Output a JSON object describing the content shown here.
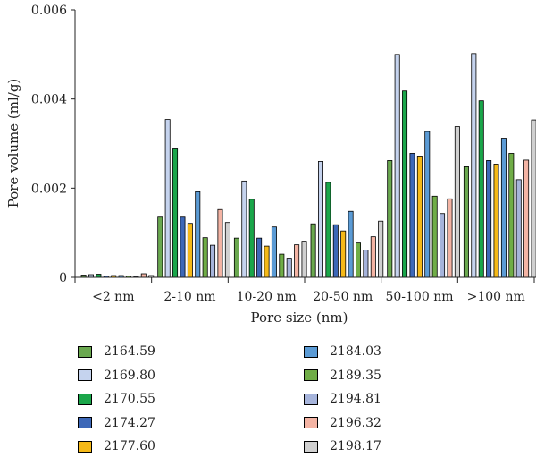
{
  "chart_data": {
    "type": "bar",
    "title": "",
    "xlabel": "Pore size (nm)",
    "ylabel": "Pore volume (ml/g)",
    "ylim": [
      0,
      0.006
    ],
    "yticks": [
      "0",
      "0.002",
      "0.004",
      "0.006"
    ],
    "grid": false,
    "legend_position": "bottom",
    "categories": [
      "<2 nm",
      "2-10 nm",
      "10-20 nm",
      "20-50 nm",
      "50-100 nm",
      ">100 nm"
    ],
    "series": [
      {
        "name": "2164.59",
        "color": "#6aa84f",
        "values": [
          5e-05,
          0.00135,
          0.00088,
          0.0012,
          0.00262,
          0.00248
        ]
      },
      {
        "name": "2169.80",
        "color": "#c5d3ee",
        "values": [
          6e-05,
          0.00354,
          0.00216,
          0.0026,
          0.005,
          0.00502
        ]
      },
      {
        "name": "2170.55",
        "color": "#1aa64a",
        "values": [
          7e-05,
          0.00288,
          0.00175,
          0.00213,
          0.00418,
          0.00396
        ]
      },
      {
        "name": "2174.27",
        "color": "#3d68b8",
        "values": [
          3e-05,
          0.00135,
          0.00088,
          0.00118,
          0.00278,
          0.00262
        ]
      },
      {
        "name": "2177.60",
        "color": "#f5b918",
        "values": [
          4e-05,
          0.00121,
          0.0007,
          0.00104,
          0.00272,
          0.00254
        ]
      },
      {
        "name": "2184.03",
        "color": "#5b9bd5",
        "values": [
          4e-05,
          0.00192,
          0.00113,
          0.00148,
          0.00327,
          0.00312
        ]
      },
      {
        "name": "2189.35",
        "color": "#70ad47",
        "values": [
          3e-05,
          0.00089,
          0.00052,
          0.00077,
          0.00182,
          0.00278
        ]
      },
      {
        "name": "2194.81",
        "color": "#a6b4db",
        "values": [
          2e-05,
          0.00072,
          0.00043,
          0.00061,
          0.00143,
          0.00219
        ]
      },
      {
        "name": "2196.32",
        "color": "#f4b4a4",
        "values": [
          8e-05,
          0.00152,
          0.00073,
          0.00091,
          0.00176,
          0.00263
        ]
      },
      {
        "name": "2198.17",
        "color": "#d0d0d0",
        "values": [
          4e-05,
          0.00123,
          0.00081,
          0.00126,
          0.00338,
          0.00353
        ]
      }
    ]
  }
}
